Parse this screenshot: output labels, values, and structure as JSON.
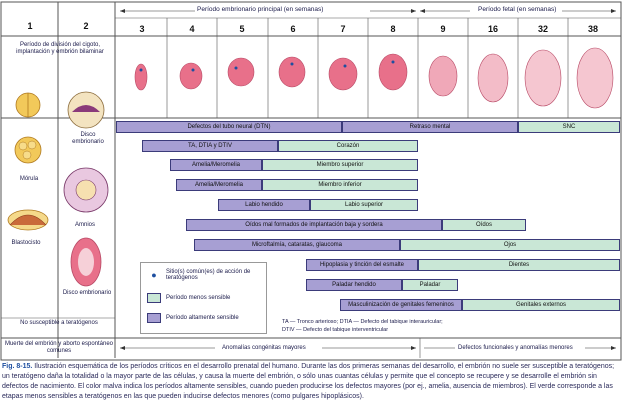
{
  "columns": {
    "c1": "1",
    "c2": "2"
  },
  "header": {
    "embryonic": "Período embrionario principal (en semanas)",
    "fetal": "Período fetal (en semanas)"
  },
  "weeks": [
    "3",
    "4",
    "5",
    "6",
    "7",
    "8",
    "9",
    "16",
    "32",
    "38"
  ],
  "left_panel": {
    "title": "Período de división del cigoto, implantación y embrión bilaminar",
    "morula": "Mórula",
    "blastocyst": "Blastocisto",
    "disc": "Disco embrionario",
    "amnion": "Amnios",
    "disc2": "Disco embrionario",
    "not_susceptible": "No susceptible a teratógenos",
    "death": "Muerte del embrión y aborto espontáneo comunes"
  },
  "bars": [
    {
      "label": "Defectos del tubo neural (DTN)",
      "color": "purple"
    },
    {
      "label": "Retraso mental",
      "color": "purple"
    },
    {
      "label": "SNC",
      "color": "green"
    },
    {
      "label": "TA, DTIA y DTIV",
      "color": "purple"
    },
    {
      "label": "Corazón",
      "color": "green"
    },
    {
      "label": "Amelia/Meromelia",
      "color": "purple"
    },
    {
      "label": "Miembro superior",
      "color": "green"
    },
    {
      "label": "Amelia/Meromelia",
      "color": "purple"
    },
    {
      "label": "Miembro inferior",
      "color": "green"
    },
    {
      "label": "Labio hendido",
      "color": "purple"
    },
    {
      "label": "Labio superior",
      "color": "green"
    },
    {
      "label": "Oídos mal formados de implantación baja y sordera",
      "color": "purple"
    },
    {
      "label": "Oídos",
      "color": "green"
    },
    {
      "label": "Microftalmía, cataratas, glaucoma",
      "color": "purple"
    },
    {
      "label": "Ojos",
      "color": "green"
    },
    {
      "label": "Hipoplasia y tinción del esmalte",
      "color": "purple"
    },
    {
      "label": "Dientes",
      "color": "green"
    },
    {
      "label": "Paladar hendido",
      "color": "purple"
    },
    {
      "label": "Paladar",
      "color": "green"
    },
    {
      "label": "Masculinización de genitales femeninos",
      "color": "purple"
    },
    {
      "label": "Genitales externos",
      "color": "green"
    }
  ],
  "legend": {
    "sites": "Sitio(s) común(es) de acción de teratógenos",
    "less": "Período menos sensible",
    "high": "Período altamente sensible"
  },
  "abbrev": {
    "line1": "TA — Tronco arterioso; DTIA — Defecto del tabique interauricular;",
    "line2": "DTIV — Defecto del tabique interventricular"
  },
  "bottom": {
    "major": "Anomalías congénitas mayores",
    "minor": "Defectos funcionales y anomalías menores"
  },
  "caption": {
    "lead": "Fig. 8-15.",
    "text": "Ilustración esquemática de los períodos críticos en el desarrollo prenatal del humano. Durante las dos primeras semanas del desarrollo, el embrión no suele ser susceptible a teratógenos; un teratógeno daña la totalidad o la mayor parte de las células, y causa la muerte del embrión, o sólo unas cuantas células y permite que el concepto se recupere y se desarrolle el embrión sin defectos de nacimiento. El color malva indica los períodos altamente sensibles, cuando pueden producirse los defectos mayores (por ej., amelia, ausencia de miembros). El verde corresponde a las etapas menos sensibles a teratógenos en las que pueden inducirse defectos menores (como pulgares hipoplásicos)."
  },
  "colors": {
    "purple": "#a79fd3",
    "green": "#c9e7d6",
    "embryo": "#e8708a",
    "blue": "#1e4fa0"
  }
}
